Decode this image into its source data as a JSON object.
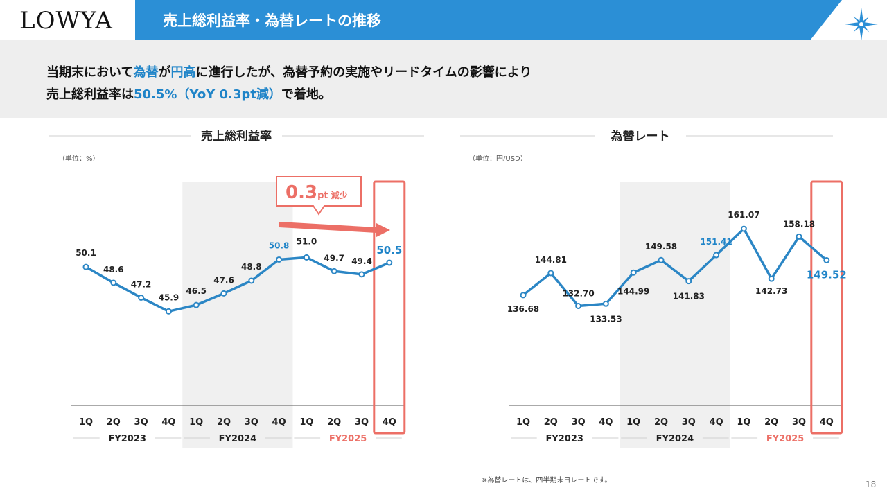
{
  "header": {
    "logo": "LOWYA",
    "title": "売上総利益率・為替レートの推移"
  },
  "summary": {
    "line1": [
      {
        "text": "当期末において",
        "hl": false
      },
      {
        "text": "為替",
        "hl": true
      },
      {
        "text": "が",
        "hl": false
      },
      {
        "text": "円高",
        "hl": true
      },
      {
        "text": "に進行したが、為替予約の実施やリードタイムの影響により",
        "hl": false
      }
    ],
    "line2": [
      {
        "text": "売上総利益率は",
        "hl": false
      },
      {
        "text": "50.5%（YoY 0.3pt減）",
        "hl": true
      },
      {
        "text": "で着地。",
        "hl": false
      }
    ]
  },
  "chart_data": [
    {
      "type": "line",
      "title": "売上総利益率",
      "unit_label": "（単位：%）",
      "categories": [
        "1Q",
        "2Q",
        "3Q",
        "4Q",
        "1Q",
        "2Q",
        "3Q",
        "4Q",
        "1Q",
        "2Q",
        "3Q",
        "4Q"
      ],
      "fiscal_years": [
        {
          "label": "FY2023",
          "highlight": false
        },
        {
          "label": "FY2024",
          "highlight": false
        },
        {
          "label": "FY2025",
          "highlight": true
        }
      ],
      "values": [
        50.1,
        48.6,
        47.2,
        45.9,
        46.5,
        47.6,
        48.8,
        50.8,
        51.0,
        49.7,
        49.4,
        50.5
      ],
      "value_labels": [
        "50.1",
        "48.6",
        "47.2",
        "45.9",
        "46.5",
        "47.6",
        "48.8",
        "50.8",
        "51.0",
        "49.7",
        "49.4",
        "50.5"
      ],
      "ylim": [
        38,
        56
      ],
      "highlight_points": [
        7,
        11
      ],
      "shaded_year": "FY2024",
      "callout": {
        "value": "0.3",
        "unit": "pt",
        "text": "減少"
      }
    },
    {
      "type": "line",
      "title": "為替レート",
      "unit_label": "（単位：円/USD）",
      "categories": [
        "1Q",
        "2Q",
        "3Q",
        "4Q",
        "1Q",
        "2Q",
        "3Q",
        "4Q",
        "1Q",
        "2Q",
        "3Q",
        "4Q"
      ],
      "fiscal_years": [
        {
          "label": "FY2023",
          "highlight": false
        },
        {
          "label": "FY2024",
          "highlight": false
        },
        {
          "label": "FY2025",
          "highlight": true
        }
      ],
      "values": [
        136.68,
        144.81,
        132.7,
        133.53,
        144.99,
        149.58,
        141.83,
        151.41,
        161.07,
        142.73,
        158.18,
        149.52
      ],
      "value_labels": [
        "136.68",
        "144.81",
        "132.70",
        "133.53",
        "144.99",
        "149.58",
        "141.83",
        "151.41",
        "161.07",
        "142.73",
        "158.18",
        "149.52"
      ],
      "ylim": [
        100,
        170
      ],
      "highlight_points": [
        7,
        11
      ],
      "shaded_year": "FY2024"
    }
  ],
  "colors": {
    "line": "#2b86c5",
    "highlight_text": "#1f84c8",
    "accent": "#ec6f66",
    "header_blue": "#2b8fd6"
  },
  "footnote": "※為替レートは、四半期末日レートです。",
  "page_number": "18"
}
